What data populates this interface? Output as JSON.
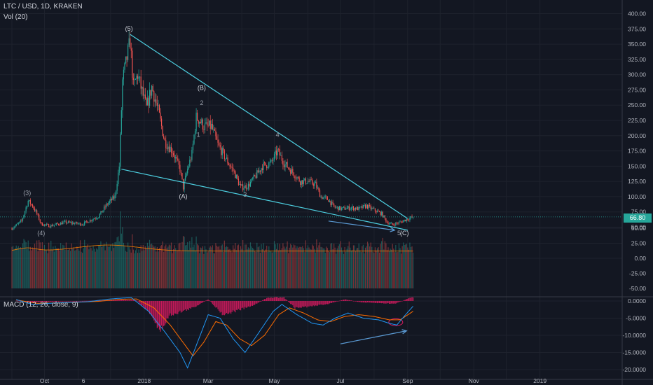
{
  "header": {
    "symbol": "LTC / USD, 1D, KRAKEN",
    "volume_label": "Vol (20)",
    "macd_label": "MACD (12, 26, close, 9)"
  },
  "last_price": "66.80",
  "colors": {
    "background": "#131722",
    "grid": "#1e222d",
    "up": "#26a69a",
    "down": "#ef5350",
    "trendline": "#4dd0e1",
    "macd_line": "#2196f3",
    "signal_line": "#ff6d00",
    "histogram": "#d81b60",
    "arrow": "#5b9bd5"
  },
  "chart_data": [
    {
      "type": "candlestick",
      "title": "LTC / USD, 1D, KRAKEN",
      "x_ticks": [
        "Oct",
        "6",
        "2018",
        "Mar",
        "May",
        "Jul",
        "Sep",
        "Nov",
        "2019"
      ],
      "y_ticks": [
        "50.00",
        "75.00",
        "100.00",
        "125.00",
        "150.00",
        "175.00",
        "200.00",
        "225.00",
        "250.00",
        "275.00",
        "300.00",
        "325.00",
        "350.00",
        "375.00",
        "400.00"
      ],
      "ylim": [
        25,
        410
      ],
      "last_price": 66.8,
      "price_path": [
        {
          "date": "2017-09-01",
          "price": 48
        },
        {
          "date": "2017-09-10",
          "price": 60
        },
        {
          "date": "2017-09-16",
          "price": 93
        },
        {
          "date": "2017-09-20",
          "price": 85
        },
        {
          "date": "2017-09-24",
          "price": 72
        },
        {
          "date": "2017-09-28",
          "price": 55
        },
        {
          "date": "2017-10-06",
          "price": 52
        },
        {
          "date": "2017-10-20",
          "price": 58
        },
        {
          "date": "2017-11-05",
          "price": 55
        },
        {
          "date": "2017-11-20",
          "price": 68
        },
        {
          "date": "2017-11-28",
          "price": 88
        },
        {
          "date": "2017-12-05",
          "price": 100
        },
        {
          "date": "2017-12-09",
          "price": 150
        },
        {
          "date": "2017-12-12",
          "price": 290
        },
        {
          "date": "2017-12-19",
          "price": 355
        },
        {
          "date": "2017-12-22",
          "price": 280
        },
        {
          "date": "2017-12-26",
          "price": 300
        },
        {
          "date": "2018-01-03",
          "price": 245
        },
        {
          "date": "2018-01-08",
          "price": 280
        },
        {
          "date": "2018-01-14",
          "price": 240
        },
        {
          "date": "2018-01-20",
          "price": 190
        },
        {
          "date": "2018-01-27",
          "price": 175
        },
        {
          "date": "2018-02-03",
          "price": 145
        },
        {
          "date": "2018-02-06",
          "price": 115
        },
        {
          "date": "2018-02-10",
          "price": 145
        },
        {
          "date": "2018-02-14",
          "price": 170
        },
        {
          "date": "2018-02-18",
          "price": 230
        },
        {
          "date": "2018-02-21",
          "price": 225
        },
        {
          "date": "2018-02-25",
          "price": 215
        },
        {
          "date": "2018-03-04",
          "price": 215
        },
        {
          "date": "2018-03-10",
          "price": 185
        },
        {
          "date": "2018-03-18",
          "price": 160
        },
        {
          "date": "2018-03-25",
          "price": 140
        },
        {
          "date": "2018-03-31",
          "price": 115
        },
        {
          "date": "2018-04-07",
          "price": 118
        },
        {
          "date": "2018-04-13",
          "price": 132
        },
        {
          "date": "2018-04-20",
          "price": 150
        },
        {
          "date": "2018-04-28",
          "price": 155
        },
        {
          "date": "2018-05-04",
          "price": 175
        },
        {
          "date": "2018-05-10",
          "price": 155
        },
        {
          "date": "2018-05-18",
          "price": 140
        },
        {
          "date": "2018-05-25",
          "price": 125
        },
        {
          "date": "2018-06-01",
          "price": 125
        },
        {
          "date": "2018-06-08",
          "price": 120
        },
        {
          "date": "2018-06-13",
          "price": 100
        },
        {
          "date": "2018-06-20",
          "price": 95
        },
        {
          "date": "2018-06-25",
          "price": 83
        },
        {
          "date": "2018-07-02",
          "price": 80
        },
        {
          "date": "2018-07-10",
          "price": 82
        },
        {
          "date": "2018-07-18",
          "price": 80
        },
        {
          "date": "2018-07-25",
          "price": 85
        },
        {
          "date": "2018-08-01",
          "price": 78
        },
        {
          "date": "2018-08-08",
          "price": 72
        },
        {
          "date": "2018-08-13",
          "price": 58
        },
        {
          "date": "2018-08-18",
          "price": 54
        },
        {
          "date": "2018-08-25",
          "price": 58
        },
        {
          "date": "2018-08-30",
          "price": 62
        },
        {
          "date": "2018-09-06",
          "price": 66.8
        }
      ],
      "wave_labels": [
        {
          "text": "(3)",
          "date": "2017-09-15",
          "price": 103
        },
        {
          "text": "(4)",
          "date": "2017-09-28",
          "price": 37
        },
        {
          "text": "(5)",
          "date": "2017-12-18",
          "price": 372
        },
        {
          "text": "(A)",
          "date": "2018-02-06",
          "price": 97
        },
        {
          "text": "(B)",
          "date": "2018-02-23",
          "price": 275
        },
        {
          "text": "2",
          "date": "2018-02-23",
          "price": 250
        },
        {
          "text": "1",
          "date": "2018-02-20",
          "price": 198
        },
        {
          "text": "3",
          "date": "2018-04-04",
          "price": 100
        },
        {
          "text": "4",
          "date": "2018-05-04",
          "price": 198
        },
        {
          "text": "5",
          "date": "2018-08-24",
          "price": 37
        },
        {
          "text": "(C)",
          "date": "2018-08-29",
          "price": 37
        }
      ],
      "trendlines": [
        {
          "from": {
            "date": "2017-12-19",
            "price": 366
          },
          "to": {
            "date": "2018-09-01",
            "price": 64
          }
        },
        {
          "from": {
            "date": "2017-12-11",
            "price": 145
          },
          "to": {
            "date": "2018-09-01",
            "price": 45
          }
        }
      ]
    },
    {
      "type": "bar",
      "title": "Vol (20)",
      "y_ticks": [
        "0.00",
        "25.00",
        "50.00"
      ]
    },
    {
      "type": "line",
      "title": "MACD (12, 26, close, 9)",
      "y_ticks": [
        "0.0000",
        "-5.0000",
        "-10.0000",
        "-15.0000",
        "-20.0000"
      ],
      "ylim": [
        -21,
        1.5
      ],
      "macd_path": [
        {
          "date": "2017-09-05",
          "value": 0.4
        },
        {
          "date": "2017-09-20",
          "value": -1.0
        },
        {
          "date": "2017-10-10",
          "value": -0.6
        },
        {
          "date": "2017-11-10",
          "value": -0.2
        },
        {
          "date": "2017-12-01",
          "value": 0.6
        },
        {
          "date": "2017-12-20",
          "value": 1.0
        },
        {
          "date": "2018-01-05",
          "value": -3
        },
        {
          "date": "2018-01-20",
          "value": -9
        },
        {
          "date": "2018-02-03",
          "value": -15
        },
        {
          "date": "2018-02-10",
          "value": -19.5
        },
        {
          "date": "2018-02-18",
          "value": -13
        },
        {
          "date": "2018-03-01",
          "value": -4
        },
        {
          "date": "2018-03-12",
          "value": -5
        },
        {
          "date": "2018-03-24",
          "value": -11
        },
        {
          "date": "2018-04-04",
          "value": -15
        },
        {
          "date": "2018-04-15",
          "value": -10
        },
        {
          "date": "2018-04-30",
          "value": -3
        },
        {
          "date": "2018-05-08",
          "value": -1
        },
        {
          "date": "2018-05-22",
          "value": -4
        },
        {
          "date": "2018-06-05",
          "value": -6.5
        },
        {
          "date": "2018-06-15",
          "value": -7
        },
        {
          "date": "2018-06-26",
          "value": -5
        },
        {
          "date": "2018-07-08",
          "value": -3.5
        },
        {
          "date": "2018-07-22",
          "value": -5
        },
        {
          "date": "2018-08-05",
          "value": -5.5
        },
        {
          "date": "2018-08-15",
          "value": -6.5
        },
        {
          "date": "2018-08-22",
          "value": -7
        },
        {
          "date": "2018-08-30",
          "value": -4
        },
        {
          "date": "2018-09-06",
          "value": -1.5
        }
      ],
      "signal_path": [
        {
          "date": "2017-09-05",
          "value": 0.3
        },
        {
          "date": "2017-09-25",
          "value": -0.7
        },
        {
          "date": "2017-10-20",
          "value": -0.5
        },
        {
          "date": "2017-11-20",
          "value": -0.1
        },
        {
          "date": "2017-12-10",
          "value": 0.5
        },
        {
          "date": "2017-12-25",
          "value": 0.6
        },
        {
          "date": "2018-01-10",
          "value": -2
        },
        {
          "date": "2018-01-25",
          "value": -7
        },
        {
          "date": "2018-02-08",
          "value": -13
        },
        {
          "date": "2018-02-15",
          "value": -16
        },
        {
          "date": "2018-02-25",
          "value": -12
        },
        {
          "date": "2018-03-08",
          "value": -6
        },
        {
          "date": "2018-03-18",
          "value": -7
        },
        {
          "date": "2018-03-30",
          "value": -11
        },
        {
          "date": "2018-04-10",
          "value": -13
        },
        {
          "date": "2018-04-22",
          "value": -10
        },
        {
          "date": "2018-05-05",
          "value": -4
        },
        {
          "date": "2018-05-15",
          "value": -2
        },
        {
          "date": "2018-05-28",
          "value": -3.5
        },
        {
          "date": "2018-06-10",
          "value": -5.5
        },
        {
          "date": "2018-06-22",
          "value": -6
        },
        {
          "date": "2018-07-05",
          "value": -4.5
        },
        {
          "date": "2018-07-18",
          "value": -4
        },
        {
          "date": "2018-08-01",
          "value": -4.5
        },
        {
          "date": "2018-08-15",
          "value": -5.5
        },
        {
          "date": "2018-08-25",
          "value": -5.5
        },
        {
          "date": "2018-09-06",
          "value": -3
        }
      ],
      "histogram_path": [
        {
          "date": "2017-09-05",
          "value": 0.1
        },
        {
          "date": "2017-09-20",
          "value": -0.4
        },
        {
          "date": "2017-11-01",
          "value": 0.0
        },
        {
          "date": "2017-12-10",
          "value": 0.3
        },
        {
          "date": "2017-12-25",
          "value": 0.2
        },
        {
          "date": "2018-01-08",
          "value": -4
        },
        {
          "date": "2018-01-15",
          "value": -9
        },
        {
          "date": "2018-01-25",
          "value": -4
        },
        {
          "date": "2018-02-05",
          "value": -3
        },
        {
          "date": "2018-02-15",
          "value": -2
        },
        {
          "date": "2018-03-01",
          "value": 0.5
        },
        {
          "date": "2018-03-15",
          "value": -4
        },
        {
          "date": "2018-03-25",
          "value": -3
        },
        {
          "date": "2018-04-10",
          "value": -1.5
        },
        {
          "date": "2018-04-25",
          "value": 1
        },
        {
          "date": "2018-05-10",
          "value": 1
        },
        {
          "date": "2018-05-20",
          "value": -2
        },
        {
          "date": "2018-06-05",
          "value": -1.5
        },
        {
          "date": "2018-06-20",
          "value": -0.8
        },
        {
          "date": "2018-07-05",
          "value": 0.5
        },
        {
          "date": "2018-07-20",
          "value": -0.4
        },
        {
          "date": "2018-08-05",
          "value": -0.6
        },
        {
          "date": "2018-08-20",
          "value": -0.8
        },
        {
          "date": "2018-09-06",
          "value": 1.2
        }
      ]
    }
  ]
}
